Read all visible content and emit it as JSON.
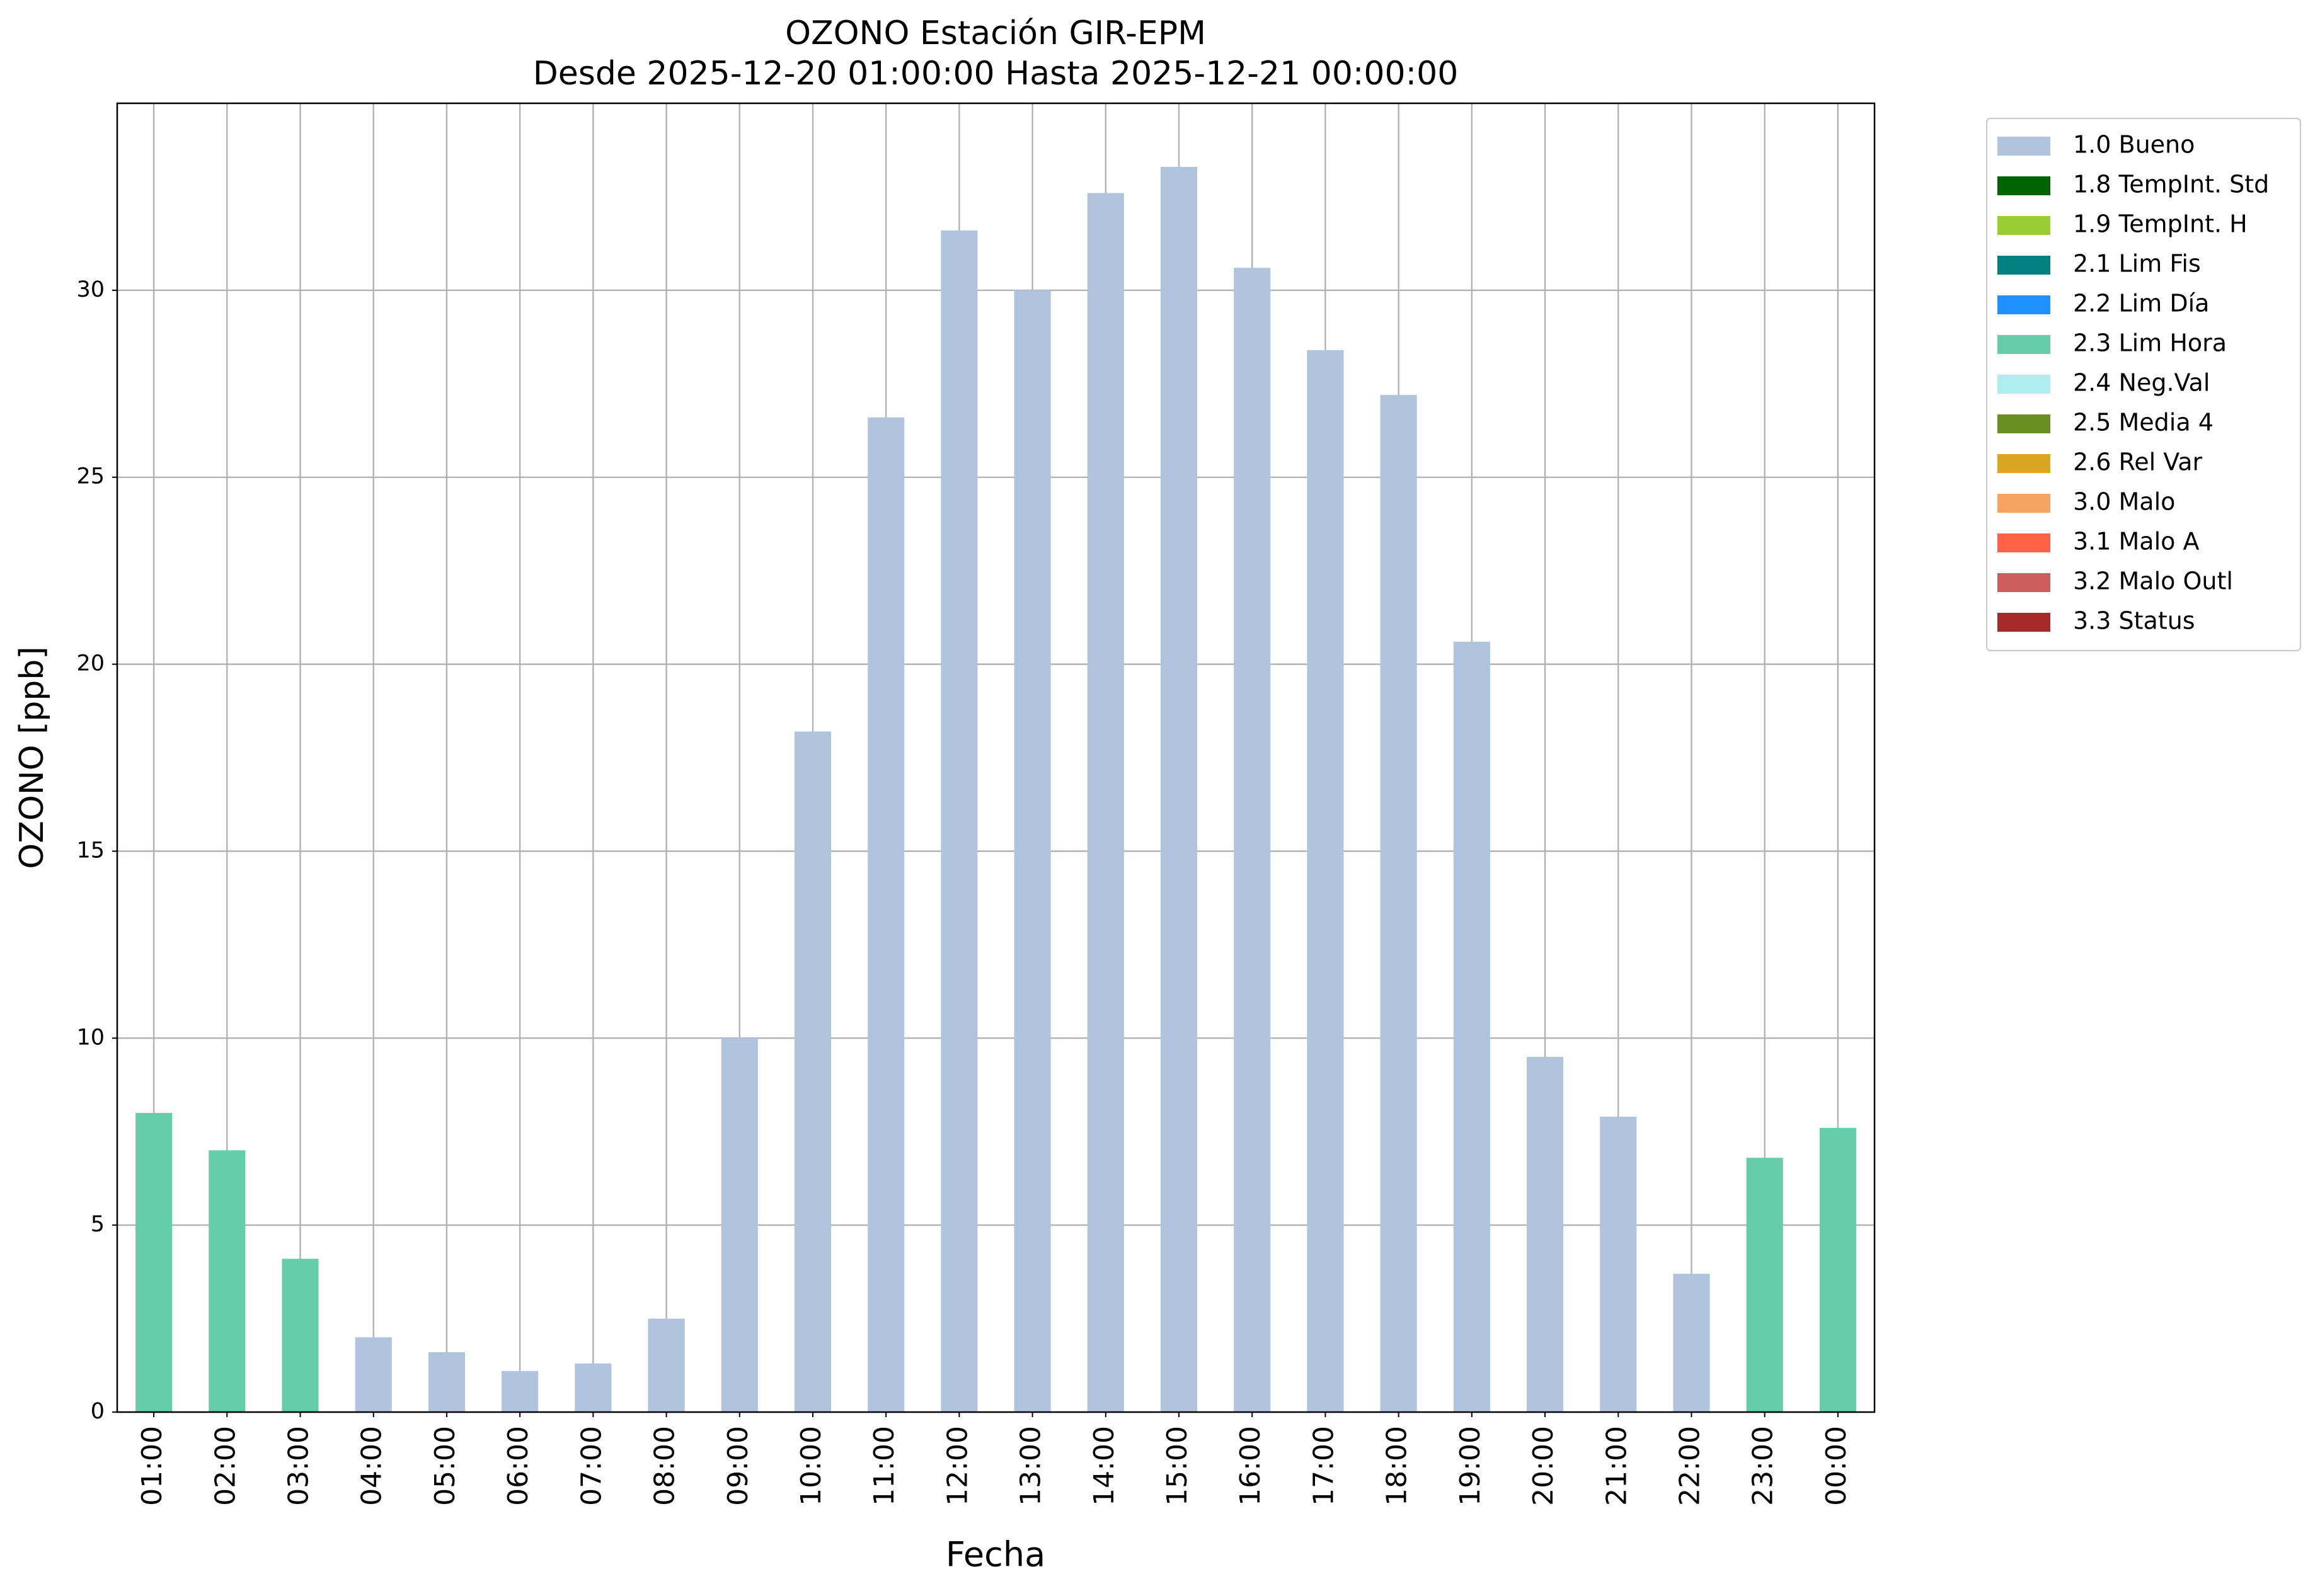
{
  "chart_data": {
    "type": "bar",
    "title": "OZONO Estación GIR-EPM",
    "subtitle": "Desde 2025-12-20 01:00:00 Hasta 2025-12-21 00:00:00",
    "x_label": "Fecha",
    "y_label": "OZONO [ppb]",
    "categories": [
      "01:00",
      "02:00",
      "03:00",
      "04:00",
      "05:00",
      "06:00",
      "07:00",
      "08:00",
      "09:00",
      "10:00",
      "11:00",
      "12:00",
      "13:00",
      "14:00",
      "15:00",
      "16:00",
      "17:00",
      "18:00",
      "19:00",
      "20:00",
      "21:00",
      "22:00",
      "23:00",
      "00:00"
    ],
    "series": [
      {
        "name": "1.0 Bueno",
        "color": "#b0c4de",
        "values": [
          null,
          null,
          null,
          2.0,
          1.6,
          1.1,
          1.3,
          2.5,
          10.0,
          18.2,
          26.6,
          31.6,
          30.0,
          32.6,
          33.3,
          30.6,
          28.4,
          27.2,
          20.6,
          9.5,
          7.9,
          3.7,
          null,
          null
        ]
      },
      {
        "name": "1.8 TempInt. Std",
        "color": "#006400",
        "values": [
          null,
          null,
          null,
          null,
          null,
          null,
          null,
          null,
          null,
          null,
          null,
          null,
          null,
          null,
          null,
          null,
          null,
          null,
          null,
          null,
          null,
          null,
          null,
          null
        ]
      },
      {
        "name": "1.9 TempInt. H",
        "color": "#9acd32",
        "values": [
          null,
          null,
          null,
          null,
          null,
          null,
          null,
          null,
          null,
          null,
          null,
          null,
          null,
          null,
          null,
          null,
          null,
          null,
          null,
          null,
          null,
          null,
          null,
          null
        ]
      },
      {
        "name": "2.1 Lim Fis",
        "color": "#008080",
        "values": [
          null,
          null,
          null,
          null,
          null,
          null,
          null,
          null,
          null,
          null,
          null,
          null,
          null,
          null,
          null,
          null,
          null,
          null,
          null,
          null,
          null,
          null,
          null,
          null
        ]
      },
      {
        "name": "2.2 Lim Día",
        "color": "#1e90ff",
        "values": [
          null,
          null,
          null,
          null,
          null,
          null,
          null,
          null,
          null,
          null,
          null,
          null,
          null,
          null,
          null,
          null,
          null,
          null,
          null,
          null,
          null,
          null,
          null,
          null
        ]
      },
      {
        "name": "2.3 Lim Hora",
        "color": "#66cdaa",
        "values": [
          8.0,
          7.0,
          4.1,
          null,
          null,
          null,
          null,
          null,
          null,
          null,
          null,
          null,
          null,
          null,
          null,
          null,
          null,
          null,
          null,
          null,
          null,
          null,
          6.8,
          7.6
        ]
      },
      {
        "name": "2.4 Neg.Val",
        "color": "#afeeee",
        "values": [
          null,
          null,
          null,
          null,
          null,
          null,
          null,
          null,
          null,
          null,
          null,
          null,
          null,
          null,
          null,
          null,
          null,
          null,
          null,
          null,
          null,
          null,
          null,
          null
        ]
      },
      {
        "name": "2.5 Media 4",
        "color": "#6b8e23",
        "values": [
          null,
          null,
          null,
          null,
          null,
          null,
          null,
          null,
          null,
          null,
          null,
          null,
          null,
          null,
          null,
          null,
          null,
          null,
          null,
          null,
          null,
          null,
          null,
          null
        ]
      },
      {
        "name": "2.6 Rel Var",
        "color": "#daa520",
        "values": [
          null,
          null,
          null,
          null,
          null,
          null,
          null,
          null,
          null,
          null,
          null,
          null,
          null,
          null,
          null,
          null,
          null,
          null,
          null,
          null,
          null,
          null,
          null,
          null
        ]
      },
      {
        "name": "3.0 Malo",
        "color": "#f4a460",
        "values": [
          null,
          null,
          null,
          null,
          null,
          null,
          null,
          null,
          null,
          null,
          null,
          null,
          null,
          null,
          null,
          null,
          null,
          null,
          null,
          null,
          null,
          null,
          null,
          null
        ]
      },
      {
        "name": "3.1 Malo A",
        "color": "#ff6347",
        "values": [
          null,
          null,
          null,
          null,
          null,
          null,
          null,
          null,
          null,
          null,
          null,
          null,
          null,
          null,
          null,
          null,
          null,
          null,
          null,
          null,
          null,
          null,
          null,
          null
        ]
      },
      {
        "name": "3.2 Malo Outl",
        "color": "#cd5c5c",
        "values": [
          null,
          null,
          null,
          null,
          null,
          null,
          null,
          null,
          null,
          null,
          null,
          null,
          null,
          null,
          null,
          null,
          null,
          null,
          null,
          null,
          null,
          null,
          null,
          null
        ]
      },
      {
        "name": "3.3 Status",
        "color": "#a52a2a",
        "values": [
          null,
          null,
          null,
          null,
          null,
          null,
          null,
          null,
          null,
          null,
          null,
          null,
          null,
          null,
          null,
          null,
          null,
          null,
          null,
          null,
          null,
          null,
          null,
          null
        ]
      }
    ],
    "ylim": [
      0,
      35
    ],
    "yticks": [
      0,
      5,
      10,
      15,
      20,
      25,
      30
    ],
    "grid": true,
    "stacked": true,
    "legend": "outside right"
  }
}
